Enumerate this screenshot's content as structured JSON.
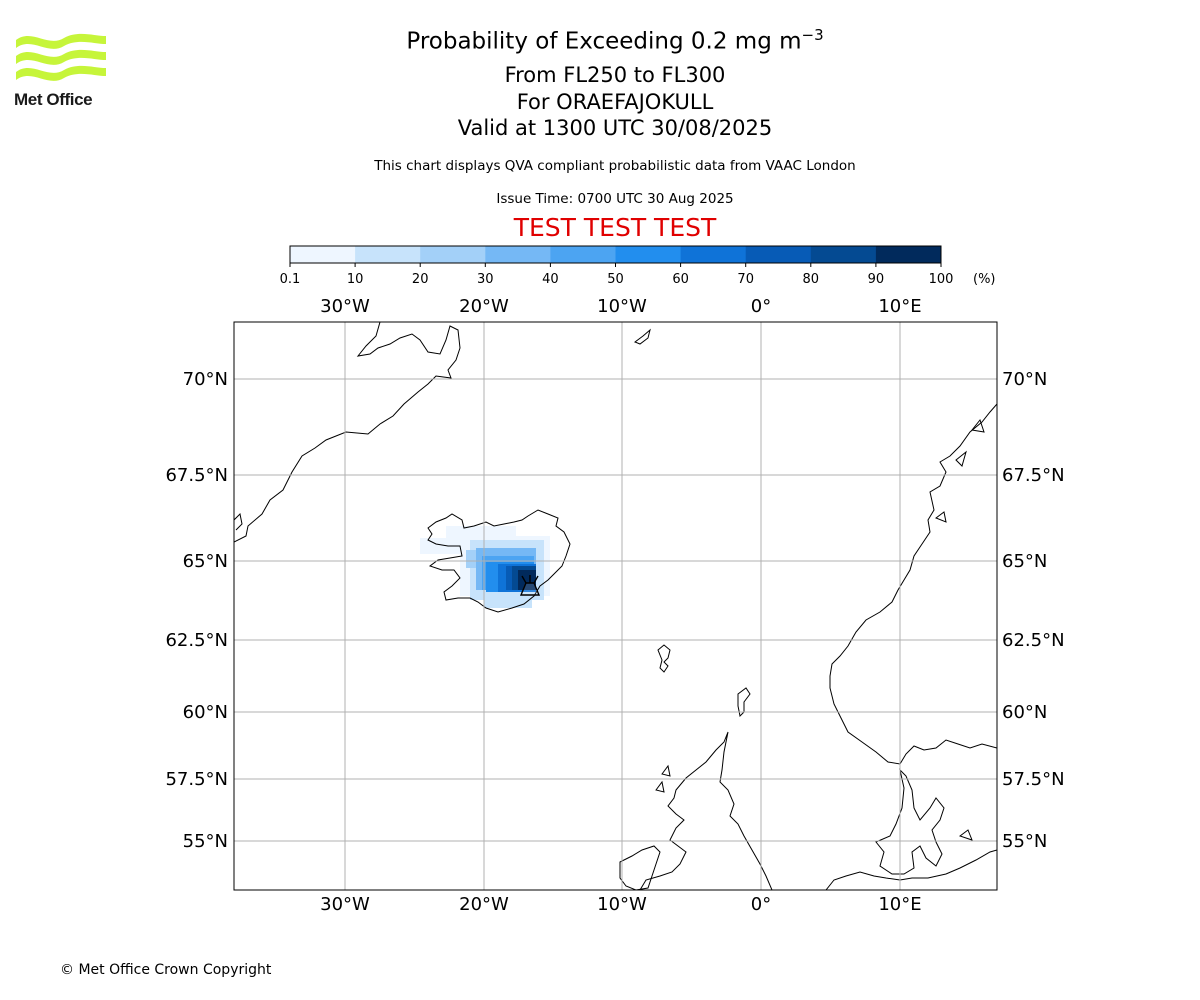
{
  "logo": {
    "text": "Met Office",
    "color": "#c6f53a"
  },
  "title": {
    "main": "Probability of Exceeding 0.2 mg m",
    "main_sup": "−3",
    "levels": "From FL250 to FL300",
    "volcano": "For ORAEFAJOKULL",
    "valid": "Valid at 1300 UTC 30/08/2025"
  },
  "subtitle": {
    "description": "This chart displays QVA compliant probabilistic data from VAAC London",
    "issue_time": "Issue Time: 0700 UTC 30 Aug 2025",
    "test_banner": "TEST TEST TEST",
    "test_color": "#e00000"
  },
  "colorbar": {
    "ticks": [
      "0.1",
      "10",
      "20",
      "30",
      "40",
      "50",
      "60",
      "70",
      "80",
      "90",
      "100"
    ],
    "unit": "(%)",
    "colors": [
      "#eef6ff",
      "#c7e3fb",
      "#a3d0f8",
      "#75b8f5",
      "#4ca4f2",
      "#228eee",
      "#0f73d8",
      "#075bb6",
      "#044a92",
      "#012a5c"
    ]
  },
  "map": {
    "lon_labels": [
      "30°W",
      "20°W",
      "10°W",
      "0°",
      "10°E"
    ],
    "lat_labels": [
      "70°N",
      "67.5°N",
      "65°N",
      "62.5°N",
      "60°N",
      "57.5°N",
      "55°N"
    ],
    "gridline_color": "#b0b0b0",
    "volcano_marker": "volcano-icon"
  },
  "footer": {
    "copyright": "© Met Office Crown Copyright"
  }
}
